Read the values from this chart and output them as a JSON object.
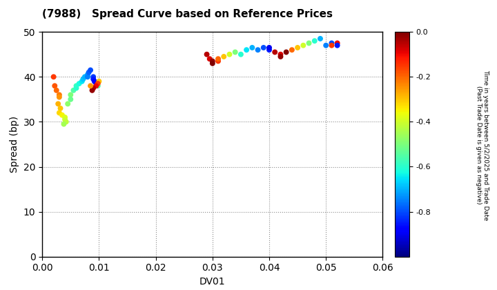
{
  "title": "(7988)   Spread Curve based on Reference Prices",
  "xlabel": "DV01",
  "ylabel": "Spread (bp)",
  "xlim": [
    0.0,
    0.06
  ],
  "ylim": [
    0,
    50
  ],
  "xticks": [
    0.0,
    0.01,
    0.02,
    0.03,
    0.04,
    0.05,
    0.06
  ],
  "yticks": [
    0,
    10,
    20,
    30,
    40,
    50
  ],
  "cbar_min": -1.0,
  "cbar_max": 0.0,
  "cbar_ticks": [
    0.0,
    -0.2,
    -0.4,
    -0.6,
    -0.8
  ],
  "cluster1_dv01": [
    0.002,
    0.0022,
    0.0025,
    0.003,
    0.003,
    0.0028,
    0.0032,
    0.003,
    0.0035,
    0.004,
    0.004,
    0.0042,
    0.0038,
    0.0045,
    0.005,
    0.005,
    0.0055,
    0.006,
    0.006,
    0.0065,
    0.007,
    0.0072,
    0.0075,
    0.008,
    0.008,
    0.0082,
    0.0085,
    0.009,
    0.009,
    0.0092,
    0.0095,
    0.0098,
    0.01,
    0.0098,
    0.0095,
    0.009,
    0.0088,
    0.0085
  ],
  "cluster1_spread": [
    40,
    38,
    37,
    36,
    35.5,
    34,
    33,
    32,
    31.5,
    31,
    30.5,
    30,
    29.5,
    34,
    36,
    35,
    37,
    38,
    37.5,
    38.5,
    39,
    39.5,
    40,
    40.5,
    40,
    41,
    41.5,
    40,
    39.5,
    39,
    38.5,
    38,
    39,
    38.5,
    38,
    37.5,
    37,
    38
  ],
  "cluster1_cval": [
    -0.15,
    -0.18,
    -0.2,
    -0.22,
    -0.25,
    -0.28,
    -0.3,
    -0.32,
    -0.35,
    -0.38,
    -0.4,
    -0.42,
    -0.45,
    -0.48,
    -0.5,
    -0.52,
    -0.55,
    -0.58,
    -0.6,
    -0.62,
    -0.65,
    -0.68,
    -0.7,
    -0.72,
    -0.75,
    -0.78,
    -0.8,
    -0.82,
    -0.85,
    -0.88,
    -0.9,
    -0.55,
    -0.3,
    -0.15,
    -0.1,
    -0.05,
    -0.02,
    -0.25
  ],
  "cluster2_dv01": [
    0.029,
    0.0295,
    0.03,
    0.03,
    0.031,
    0.031,
    0.032,
    0.033,
    0.034,
    0.035,
    0.036,
    0.037,
    0.038,
    0.039,
    0.04,
    0.04
  ],
  "cluster2_spread": [
    45,
    44,
    43.5,
    43,
    43.5,
    44,
    44.5,
    45,
    45.5,
    45,
    46,
    46.5,
    46,
    46.5,
    46,
    46.5
  ],
  "cluster2_cval": [
    -0.05,
    -0.08,
    -0.02,
    -0.0,
    -0.15,
    -0.2,
    -0.3,
    -0.4,
    -0.5,
    -0.6,
    -0.65,
    -0.7,
    -0.75,
    -0.8,
    -0.85,
    -0.9
  ],
  "cluster3_dv01": [
    0.041,
    0.042,
    0.042,
    0.043,
    0.044,
    0.045,
    0.046,
    0.047,
    0.048,
    0.049,
    0.05,
    0.051,
    0.051,
    0.052,
    0.052
  ],
  "cluster3_spread": [
    45.5,
    45,
    44.5,
    45.5,
    46,
    46.5,
    47,
    47.5,
    48,
    48.5,
    47,
    47.5,
    47,
    47.5,
    47
  ],
  "cluster3_cval": [
    -0.05,
    -0.08,
    -0.02,
    -0.0,
    -0.2,
    -0.3,
    -0.4,
    -0.5,
    -0.6,
    -0.7,
    -0.75,
    -0.8,
    -0.15,
    -0.1,
    -0.85
  ],
  "bg_color": "#ffffff",
  "scatter_size": 22
}
